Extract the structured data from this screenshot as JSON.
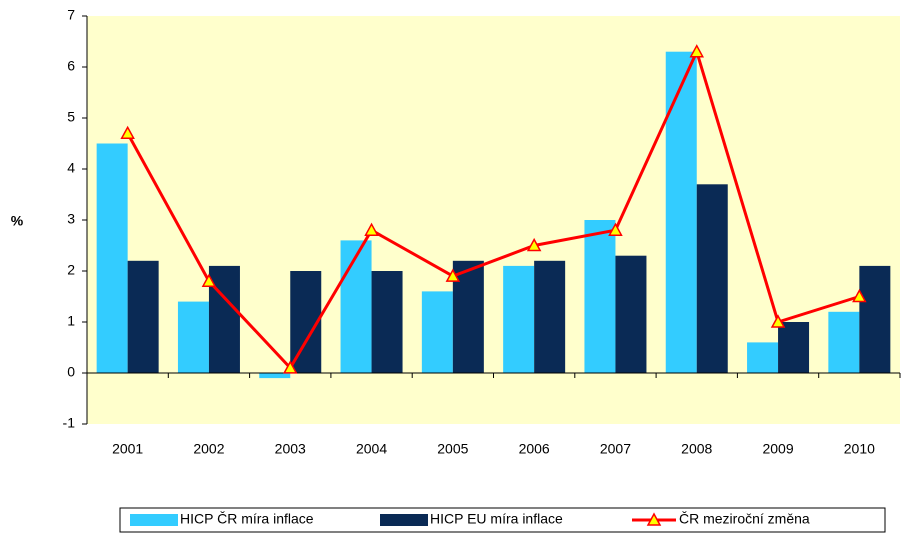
{
  "chart_data": {
    "type": "bar",
    "ylabel": "%",
    "categories": [
      "2001",
      "2002",
      "2003",
      "2004",
      "2005",
      "2006",
      "2007",
      "2008",
      "2009",
      "2010"
    ],
    "series": [
      {
        "name": "HICP ČR míra inflace",
        "color": "#33ccff",
        "values": [
          4.5,
          1.4,
          -0.1,
          2.6,
          1.6,
          2.1,
          3.0,
          6.3,
          0.6,
          1.2
        ]
      },
      {
        "name": "HICP EU míra inflace",
        "color": "#0a2a55",
        "values": [
          2.2,
          2.1,
          2.0,
          2.0,
          2.2,
          2.2,
          2.3,
          3.7,
          1.0,
          2.1
        ]
      },
      {
        "name": "ČR meziroční změna",
        "type": "line",
        "color": "#ff0000",
        "marker_color": "#ffff00",
        "values": [
          4.7,
          1.8,
          0.1,
          2.8,
          1.9,
          2.5,
          2.8,
          6.3,
          1.0,
          1.5
        ]
      }
    ],
    "ylim": [
      -1,
      7
    ],
    "yticks": [
      -1,
      0,
      1,
      2,
      3,
      4,
      5,
      6,
      7
    ],
    "plot_background": "#ffffcc",
    "legend": "bottom"
  }
}
